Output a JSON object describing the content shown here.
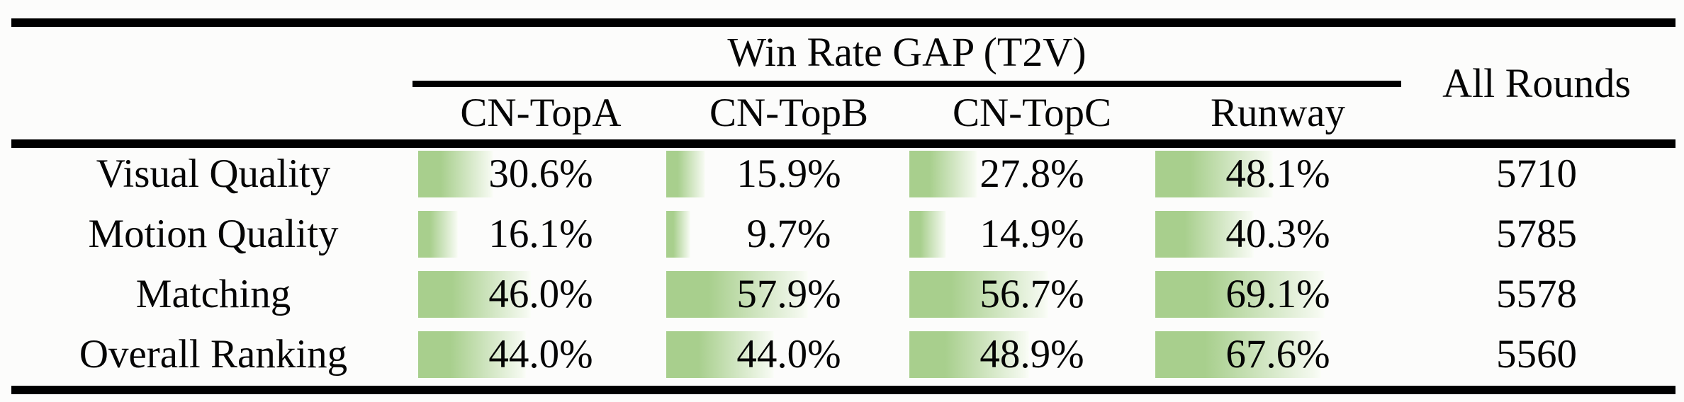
{
  "colors": {
    "bar_green": "#a8cf8d",
    "bar_fade": "#f4f9ef",
    "rule_black": "#000000",
    "page_bg": "#fcfcfb"
  },
  "table": {
    "group_header": "Win Rate GAP (T2V)",
    "all_rounds_header": "All Rounds",
    "columns": [
      "CN-TopA",
      "CN-TopB",
      "CN-TopC",
      "Runway"
    ],
    "rows": [
      {
        "label": "Visual Quality",
        "cells": [
          {
            "text": "30.6%",
            "percent": 30.6
          },
          {
            "text": "15.9%",
            "percent": 15.9
          },
          {
            "text": "27.8%",
            "percent": 27.8
          },
          {
            "text": "48.1%",
            "percent": 48.1
          }
        ],
        "all_rounds": "5710"
      },
      {
        "label": "Motion Quality",
        "cells": [
          {
            "text": "16.1%",
            "percent": 16.1
          },
          {
            "text": "9.7%",
            "percent": 9.7
          },
          {
            "text": "14.9%",
            "percent": 14.9
          },
          {
            "text": "40.3%",
            "percent": 40.3
          }
        ],
        "all_rounds": "5785"
      },
      {
        "label": "Matching",
        "cells": [
          {
            "text": "46.0%",
            "percent": 46.0
          },
          {
            "text": "57.9%",
            "percent": 57.9
          },
          {
            "text": "56.7%",
            "percent": 56.7
          },
          {
            "text": "69.1%",
            "percent": 69.1
          }
        ],
        "all_rounds": "5578"
      },
      {
        "label": "Overall Ranking",
        "cells": [
          {
            "text": "44.0%",
            "percent": 44.0
          },
          {
            "text": "44.0%",
            "percent": 44.0
          },
          {
            "text": "48.9%",
            "percent": 48.9
          },
          {
            "text": "67.6%",
            "percent": 67.6
          }
        ],
        "all_rounds": "5560"
      }
    ]
  },
  "chart_data": {
    "type": "table",
    "title": "Win Rate GAP (T2V)",
    "categories": [
      "CN-TopA",
      "CN-TopB",
      "CN-TopC",
      "Runway"
    ],
    "series": [
      {
        "name": "Visual Quality",
        "values": [
          30.6,
          15.9,
          27.8,
          48.1
        ],
        "all_rounds": 5710
      },
      {
        "name": "Motion Quality",
        "values": [
          16.1,
          9.7,
          14.9,
          40.3
        ],
        "all_rounds": 5785
      },
      {
        "name": "Matching",
        "values": [
          46.0,
          57.9,
          56.7,
          69.1
        ],
        "all_rounds": 5578
      },
      {
        "name": "Overall Ranking",
        "values": [
          44.0,
          44.0,
          48.9,
          67.6
        ],
        "all_rounds": 5560
      }
    ],
    "value_unit": "%",
    "bar_scale": "cell width = 100%",
    "extra_column": "All Rounds"
  }
}
